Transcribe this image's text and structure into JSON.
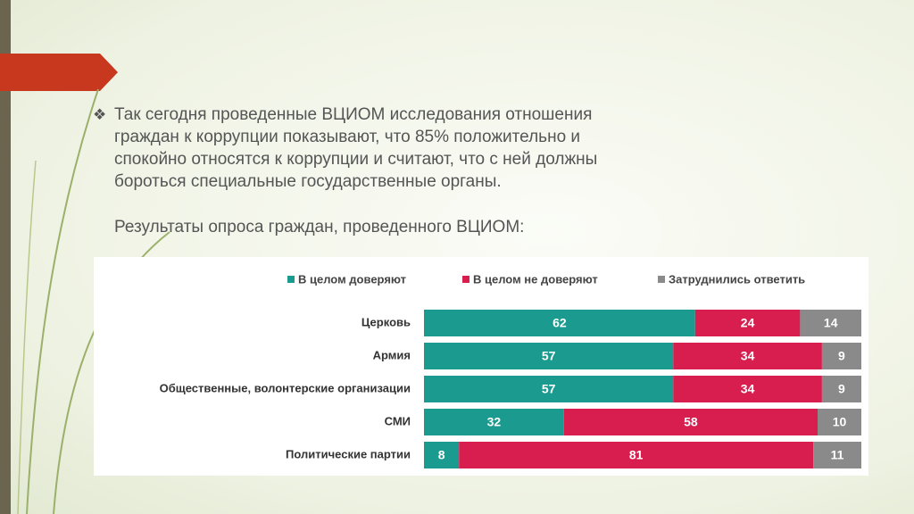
{
  "slide": {
    "bullet": "❖",
    "paragraph": "Так сегодня проведенные ВЦИОМ исследования отношения граждан к коррупции показывают, что 85% положительно и спокойно относятся к коррупции и считают, что с ней должны бороться специальные государственные органы.",
    "caption": "Результаты опроса граждан, проведенного ВЦИОМ:"
  },
  "chart_data": {
    "type": "stacked-bar-horizontal",
    "categories": [
      "Церковь",
      "Армия",
      "Общественные, волонтерские организации",
      "СМИ",
      "Политические партии"
    ],
    "series": [
      {
        "name": "В целом доверяют",
        "color": "#1b9b8f",
        "values": [
          62,
          57,
          57,
          32,
          8
        ]
      },
      {
        "name": "В целом не доверяют",
        "color": "#d81e4f",
        "values": [
          24,
          34,
          34,
          58,
          81
        ]
      },
      {
        "name": "Затруднились ответить",
        "color": "#8a8a8a",
        "values": [
          14,
          9,
          9,
          10,
          11
        ]
      }
    ],
    "xlim": [
      0,
      100
    ],
    "legend": "top"
  }
}
